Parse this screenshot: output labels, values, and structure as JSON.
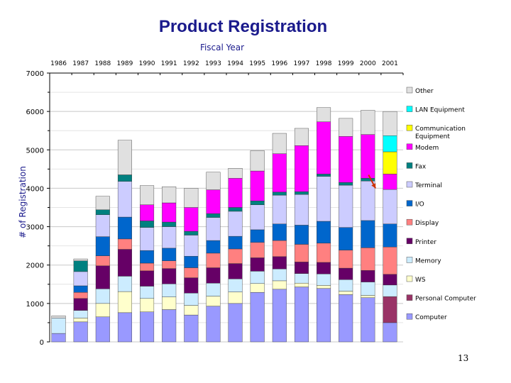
{
  "slide": {
    "page_number": "13"
  },
  "chart_data": {
    "type": "bar",
    "stacked": true,
    "title": "Product Registration",
    "subtitle": "Fiscal Year",
    "ylabel": "# of Registration",
    "ylim": [
      0,
      7000
    ],
    "yticks": [
      0,
      1000,
      2000,
      3000,
      4000,
      5000,
      6000,
      7000
    ],
    "x_axis_position": "top",
    "grid": true,
    "legend_position": "right",
    "categories": [
      "1986",
      "1987",
      "1988",
      "1989",
      "1990",
      "1991",
      "1992",
      "1993",
      "1994",
      "1995",
      "1996",
      "1997",
      "1998",
      "1999",
      "2000",
      "2001"
    ],
    "series": [
      {
        "name": "Computer",
        "color": "#9999ff",
        "values": [
          220,
          520,
          650,
          760,
          780,
          840,
          700,
          930,
          1000,
          1290,
          1370,
          1430,
          1390,
          1230,
          1150,
          500
        ]
      },
      {
        "name": "Personal Computer",
        "color": "#993366",
        "values": [
          0,
          0,
          0,
          0,
          0,
          0,
          0,
          0,
          0,
          0,
          0,
          0,
          0,
          0,
          0,
          680
        ]
      },
      {
        "name": "WS",
        "color": "#ffffcc",
        "values": [
          0,
          100,
          350,
          550,
          350,
          330,
          250,
          260,
          300,
          230,
          220,
          100,
          80,
          90,
          60,
          0
        ]
      },
      {
        "name": "Memory",
        "color": "#ccecff",
        "values": [
          400,
          200,
          380,
          400,
          320,
          340,
          320,
          340,
          340,
          320,
          310,
          250,
          300,
          300,
          350,
          300
        ]
      },
      {
        "name": "Printer",
        "color": "#660066",
        "values": [
          0,
          310,
          600,
          700,
          400,
          400,
          400,
          400,
          400,
          350,
          320,
          300,
          300,
          300,
          300,
          280
        ]
      },
      {
        "name": "Display",
        "color": "#ff8080",
        "values": [
          0,
          160,
          260,
          270,
          200,
          200,
          260,
          380,
          380,
          400,
          420,
          460,
          500,
          470,
          590,
          710
        ]
      },
      {
        "name": "I/O",
        "color": "#0066cc",
        "values": [
          0,
          170,
          500,
          570,
          330,
          330,
          300,
          330,
          330,
          330,
          430,
          500,
          570,
          590,
          710,
          600
        ]
      },
      {
        "name": "Terminal",
        "color": "#ccccff",
        "values": [
          0,
          370,
          570,
          930,
          600,
          560,
          550,
          600,
          650,
          650,
          750,
          800,
          1170,
          1100,
          1030,
          900
        ]
      },
      {
        "name": "Fax",
        "color": "#008080",
        "values": [
          0,
          280,
          130,
          170,
          170,
          120,
          100,
          100,
          100,
          100,
          80,
          70,
          60,
          70,
          70,
          0
        ]
      },
      {
        "name": "Modem",
        "color": "#ff00ff",
        "values": [
          0,
          0,
          0,
          0,
          420,
          500,
          620,
          620,
          760,
          780,
          1000,
          1200,
          1360,
          1200,
          1140,
          400
        ]
      },
      {
        "name": "Communication Equipment",
        "color": "#ffff00",
        "values": [
          0,
          0,
          0,
          0,
          0,
          0,
          0,
          0,
          0,
          0,
          0,
          0,
          0,
          0,
          0,
          580
        ]
      },
      {
        "name": "LAN Equipment",
        "color": "#00ffff",
        "values": [
          0,
          0,
          0,
          0,
          0,
          0,
          0,
          0,
          0,
          0,
          0,
          0,
          0,
          0,
          0,
          420
        ]
      },
      {
        "name": "Other",
        "color": "#e0e0e0",
        "values": [
          60,
          50,
          350,
          900,
          500,
          420,
          500,
          460,
          260,
          530,
          530,
          450,
          370,
          470,
          630,
          630
        ]
      }
    ],
    "annotations": [
      {
        "type": "arrow",
        "color": "#cc3300",
        "from_category": "2000",
        "from_value": 4350,
        "to_category": "2000",
        "to_value": 4000
      }
    ]
  }
}
